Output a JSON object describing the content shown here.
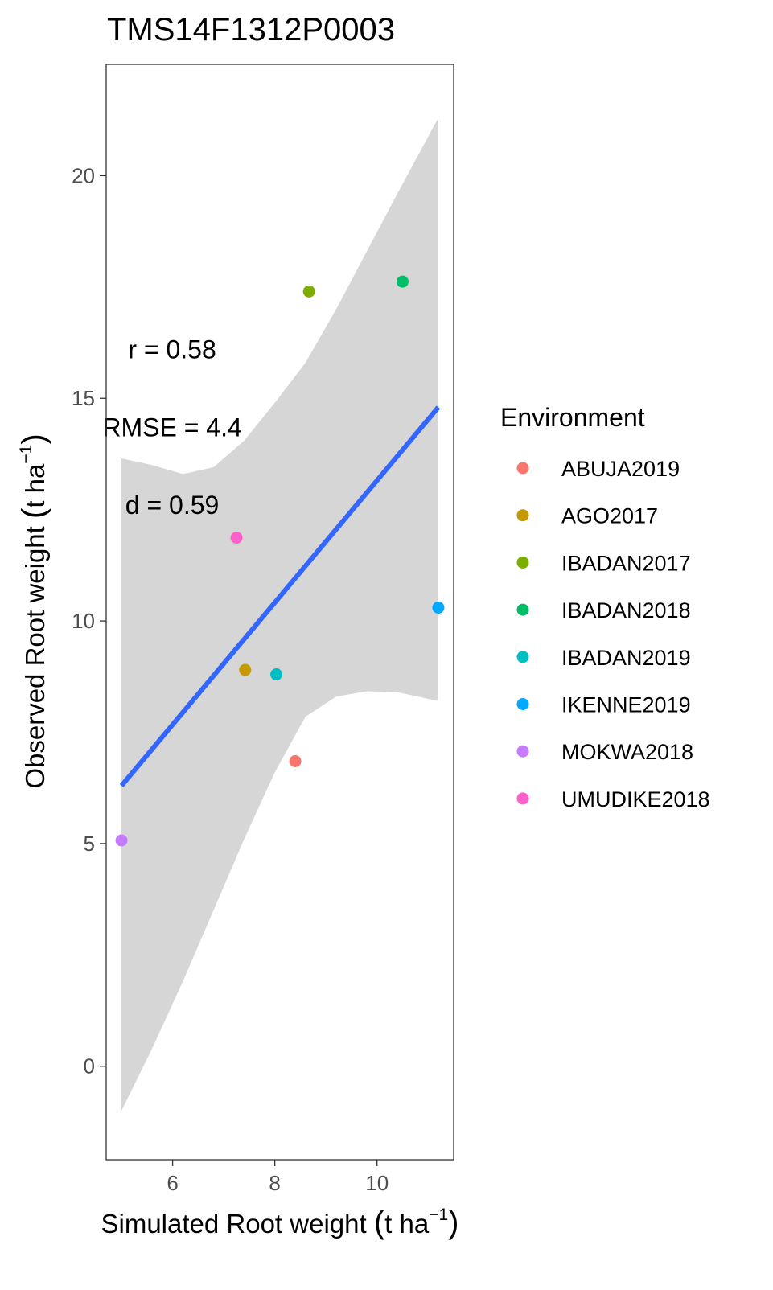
{
  "chart_data": {
    "type": "scatter",
    "title": "TMS14F1312P0003",
    "xlabel": "Simulated Root weight",
    "xlabel_unit": "t ha",
    "xlabel_exp": "−1",
    "ylabel": "Observed Root weight",
    "ylabel_unit": "t ha",
    "ylabel_exp": "−1",
    "xlim": [
      4.7,
      11.5
    ],
    "ylim": [
      -2.1,
      22.5
    ],
    "x_ticks": [
      6,
      8,
      10
    ],
    "y_ticks": [
      0,
      5,
      10,
      15,
      20
    ],
    "x_tick_labels": [
      "6",
      "8",
      "10"
    ],
    "y_tick_labels": [
      "0",
      "5",
      "10",
      "15",
      "20"
    ],
    "grid": false,
    "legend_position": "right",
    "legend_title": "Environment",
    "series": [
      {
        "name": "ABUJA2019",
        "color": "#F8766D",
        "x": [
          8.4
        ],
        "y": [
          6.85
        ]
      },
      {
        "name": "AGO2017",
        "color": "#C49A00",
        "x": [
          7.42
        ],
        "y": [
          8.9
        ]
      },
      {
        "name": "IBADAN2017",
        "color": "#7CAE00",
        "x": [
          8.67
        ],
        "y": [
          17.4
        ]
      },
      {
        "name": "IBADAN2018",
        "color": "#00BE67",
        "x": [
          10.5
        ],
        "y": [
          17.62
        ]
      },
      {
        "name": "IBADAN2019",
        "color": "#00BFC4",
        "x": [
          8.03
        ],
        "y": [
          8.8
        ]
      },
      {
        "name": "IKENNE2019",
        "color": "#00A9FF",
        "x": [
          11.2
        ],
        "y": [
          10.3
        ]
      },
      {
        "name": "MOKWA2018",
        "color": "#C77CFF",
        "x": [
          5.0
        ],
        "y": [
          5.07
        ]
      },
      {
        "name": "UMUDIKE2018",
        "color": "#FF61CC",
        "x": [
          7.25
        ],
        "y": [
          11.87
        ]
      }
    ],
    "fit_line": {
      "color": "#3366FF",
      "x": [
        5.0,
        11.2
      ],
      "y": [
        6.3,
        14.8
      ]
    },
    "confidence_band": {
      "color": "#D6D6D6",
      "x": [
        5.0,
        5.6,
        6.2,
        6.8,
        7.4,
        8.0,
        8.6,
        9.2,
        9.8,
        10.4,
        11.2
      ],
      "upper": [
        13.65,
        13.5,
        13.3,
        13.45,
        14.05,
        14.9,
        15.8,
        17.0,
        18.3,
        19.6,
        21.3
      ],
      "lower": [
        -1.0,
        0.4,
        1.9,
        3.5,
        5.1,
        6.6,
        7.85,
        8.3,
        8.42,
        8.4,
        8.2
      ]
    },
    "annotations": [
      {
        "text": "r = 0.58",
        "x": 6.7,
        "y": 15.9
      },
      {
        "text": "RMSE = 4.4",
        "x": 6.7,
        "y": 14.15
      },
      {
        "text": "d = 0.59",
        "x": 6.7,
        "y": 12.4
      }
    ]
  }
}
